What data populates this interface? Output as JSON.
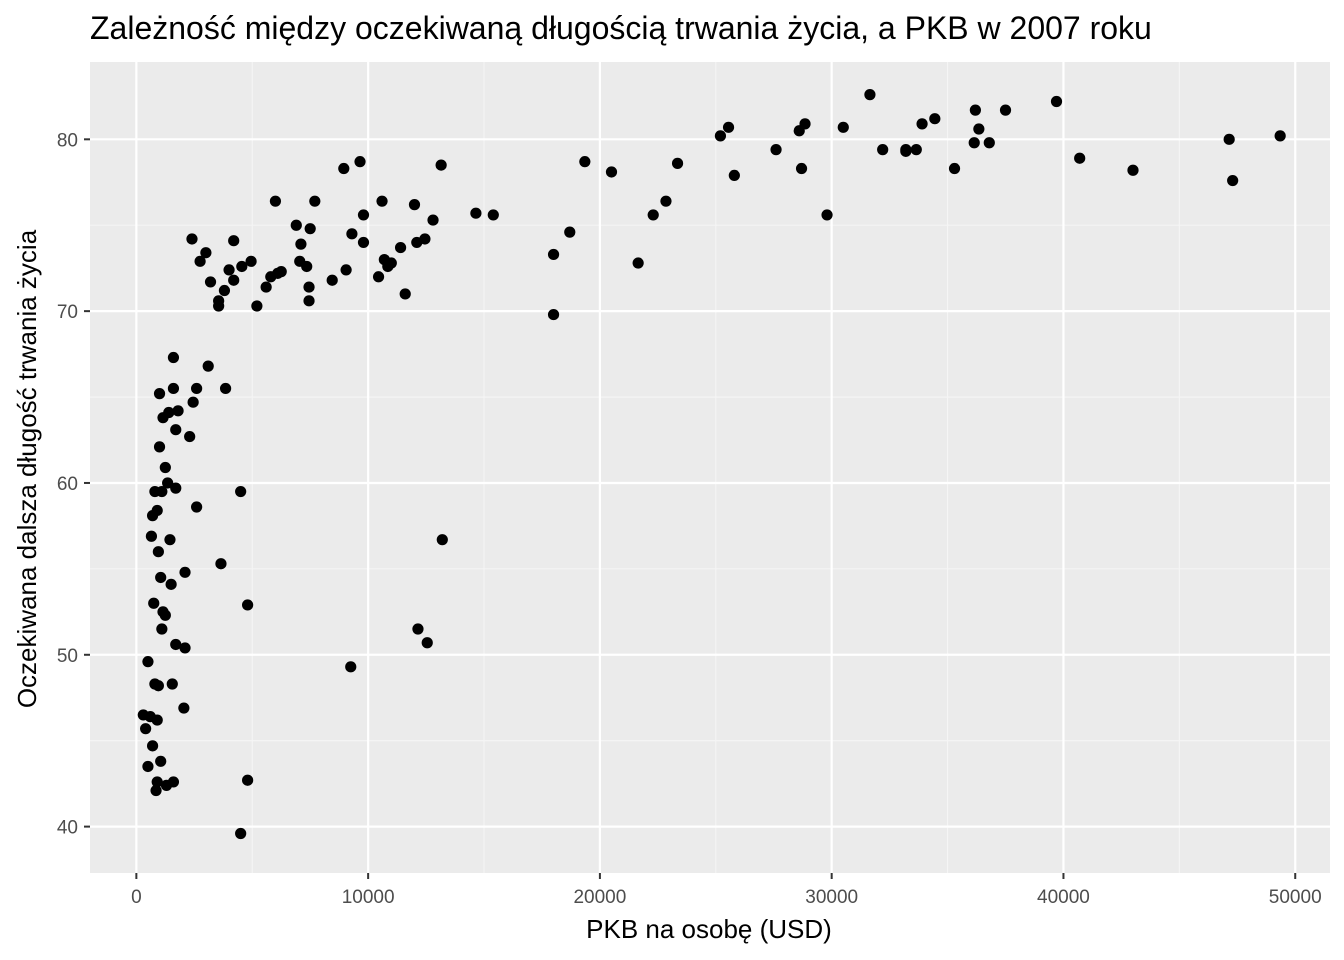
{
  "chart_data": {
    "type": "scatter",
    "title": "Zależność między oczekiwaną długością trwania życia, a PKB w 2007 roku",
    "xlabel": "PKB na osobę (USD)",
    "ylabel": "Oczekiwana dalsza długość trwania życia",
    "xlim": [
      -2000,
      51500
    ],
    "ylim": [
      37.3,
      84.5
    ],
    "x_ticks": [
      0,
      10000,
      20000,
      30000,
      40000,
      50000
    ],
    "x_tick_labels": [
      "0",
      "10000",
      "20000",
      "30000",
      "40000",
      "50000"
    ],
    "y_ticks": [
      40,
      50,
      60,
      70,
      80
    ],
    "y_tick_labels": [
      "40",
      "50",
      "60",
      "70",
      "80"
    ],
    "grid": true,
    "legend": "none",
    "colors": {
      "panel_background": "#ebebeb",
      "grid_major": "#ffffff",
      "grid_minor": "#f5f5f5",
      "points": "#000000",
      "tick_text": "#4d4d4d"
    },
    "points": [
      [
        300,
        46.5
      ],
      [
        400,
        45.7
      ],
      [
        500,
        49.6
      ],
      [
        500,
        43.5
      ],
      [
        600,
        46.4
      ],
      [
        650,
        56.9
      ],
      [
        700,
        58.1
      ],
      [
        700,
        44.7
      ],
      [
        750,
        53.0
      ],
      [
        800,
        48.3
      ],
      [
        800,
        59.5
      ],
      [
        850,
        42.1
      ],
      [
        900,
        46.2
      ],
      [
        900,
        42.6
      ],
      [
        900,
        58.4
      ],
      [
        950,
        48.2
      ],
      [
        950,
        56.0
      ],
      [
        1000,
        62.1
      ],
      [
        1000,
        65.2
      ],
      [
        1050,
        43.8
      ],
      [
        1050,
        54.5
      ],
      [
        1100,
        59.5
      ],
      [
        1100,
        51.5
      ],
      [
        1150,
        63.8
      ],
      [
        1150,
        52.5
      ],
      [
        1250,
        60.9
      ],
      [
        1250,
        52.3
      ],
      [
        1300,
        42.4
      ],
      [
        1350,
        60.0
      ],
      [
        1400,
        64.1
      ],
      [
        1450,
        56.7
      ],
      [
        1500,
        54.1
      ],
      [
        1550,
        48.3
      ],
      [
        1600,
        65.5
      ],
      [
        1600,
        42.6
      ],
      [
        1600,
        67.3
      ],
      [
        1700,
        59.7
      ],
      [
        1700,
        50.6
      ],
      [
        1700,
        63.1
      ],
      [
        1800,
        64.2
      ],
      [
        2050,
        46.9
      ],
      [
        2100,
        50.4
      ],
      [
        2100,
        54.8
      ],
      [
        2300,
        62.7
      ],
      [
        2400,
        74.2
      ],
      [
        2450,
        64.7
      ],
      [
        2600,
        65.5
      ],
      [
        2600,
        58.6
      ],
      [
        2750,
        72.9
      ],
      [
        3000,
        73.4
      ],
      [
        3100,
        66.8
      ],
      [
        3200,
        71.7
      ],
      [
        3550,
        70.3
      ],
      [
        3550,
        70.6
      ],
      [
        3650,
        55.3
      ],
      [
        3800,
        71.2
      ],
      [
        3850,
        65.5
      ],
      [
        4000,
        72.4
      ],
      [
        4200,
        71.8
      ],
      [
        4200,
        74.1
      ],
      [
        4500,
        59.5
      ],
      [
        4500,
        39.6
      ],
      [
        4550,
        72.6
      ],
      [
        4800,
        52.9
      ],
      [
        4800,
        42.7
      ],
      [
        4950,
        72.9
      ],
      [
        5200,
        70.3
      ],
      [
        5600,
        71.4
      ],
      [
        5800,
        72.0
      ],
      [
        6000,
        76.4
      ],
      [
        6100,
        72.2
      ],
      [
        6250,
        72.3
      ],
      [
        6900,
        75.0
      ],
      [
        7050,
        72.9
      ],
      [
        7100,
        73.9
      ],
      [
        7350,
        72.6
      ],
      [
        7450,
        71.4
      ],
      [
        7450,
        70.6
      ],
      [
        7500,
        74.8
      ],
      [
        7700,
        76.4
      ],
      [
        8450,
        71.8
      ],
      [
        8950,
        78.3
      ],
      [
        9050,
        72.4
      ],
      [
        9250,
        49.3
      ],
      [
        9300,
        74.5
      ],
      [
        9650,
        78.7
      ],
      [
        9800,
        75.6
      ],
      [
        9800,
        74.0
      ],
      [
        10450,
        72.0
      ],
      [
        10600,
        76.4
      ],
      [
        10700,
        73.0
      ],
      [
        10850,
        72.6
      ],
      [
        11000,
        72.8
      ],
      [
        11400,
        73.7
      ],
      [
        11600,
        71.0
      ],
      [
        12000,
        76.2
      ],
      [
        12100,
        74.0
      ],
      [
        12150,
        51.5
      ],
      [
        12450,
        74.2
      ],
      [
        12550,
        50.7
      ],
      [
        12800,
        75.3
      ],
      [
        13150,
        78.5
      ],
      [
        13200,
        56.7
      ],
      [
        14650,
        75.7
      ],
      [
        15400,
        75.6
      ],
      [
        18000,
        73.3
      ],
      [
        18000,
        69.8
      ],
      [
        18700,
        74.6
      ],
      [
        19350,
        78.7
      ],
      [
        20500,
        78.1
      ],
      [
        21650,
        72.8
      ],
      [
        22300,
        75.6
      ],
      [
        22850,
        76.4
      ],
      [
        23350,
        78.6
      ],
      [
        25200,
        80.2
      ],
      [
        25550,
        80.7
      ],
      [
        25800,
        77.9
      ],
      [
        27600,
        79.4
      ],
      [
        28600,
        80.5
      ],
      [
        28700,
        78.3
      ],
      [
        28850,
        80.9
      ],
      [
        29800,
        75.6
      ],
      [
        30500,
        80.7
      ],
      [
        31650,
        82.6
      ],
      [
        32200,
        79.4
      ],
      [
        33200,
        79.3
      ],
      [
        33200,
        79.4
      ],
      [
        33650,
        79.4
      ],
      [
        33900,
        80.9
      ],
      [
        34450,
        81.2
      ],
      [
        35300,
        78.3
      ],
      [
        36150,
        79.8
      ],
      [
        36200,
        81.7
      ],
      [
        36350,
        80.6
      ],
      [
        36800,
        79.8
      ],
      [
        37500,
        81.7
      ],
      [
        39700,
        82.2
      ],
      [
        40700,
        78.9
      ],
      [
        43000,
        78.2
      ],
      [
        47150,
        80.0
      ],
      [
        47300,
        77.6
      ],
      [
        49350,
        80.2
      ]
    ]
  }
}
